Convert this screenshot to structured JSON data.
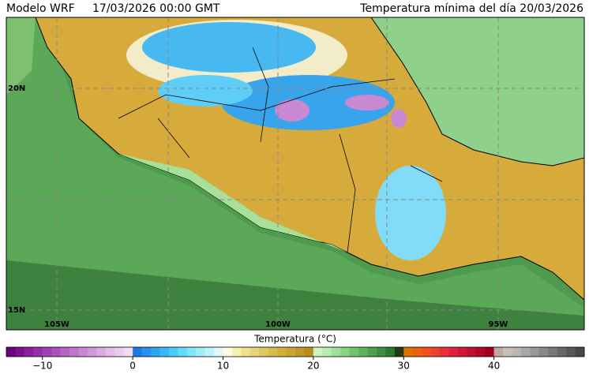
{
  "header": {
    "model": "Modelo WRF",
    "run": "17/03/2026 00:00 GMT",
    "title": "Temperatura mínima del día 20/03/2026"
  },
  "map": {
    "lat_labels": [
      "20N",
      "15N"
    ],
    "lon_labels": [
      "105W",
      "100W",
      "95W"
    ]
  },
  "colorbar": {
    "label": "Temperatura (°C)",
    "lim": [
      -14,
      50
    ],
    "ticks": [
      {
        "value": -10,
        "label": "−10"
      },
      0,
      10,
      20,
      30,
      40
    ],
    "colors": [
      "#6a0080",
      "#7a108e",
      "#8a209c",
      "#9630a8",
      "#a040b2",
      "#aa52ba",
      "#b464c2",
      "#be76ca",
      "#c888d2",
      "#d29ada",
      "#dcaae2",
      "#e4bce8",
      "#ecccee",
      "#f2dcf4",
      "#1e78e6",
      "#2890f0",
      "#30a4f4",
      "#38b8f8",
      "#48ccfa",
      "#60dcfc",
      "#80e6fc",
      "#a0eefc",
      "#c0f4fc",
      "#e0fafc",
      "#fffce0",
      "#f8eeb0",
      "#f0e090",
      "#e8d478",
      "#e0c860",
      "#d8bc48",
      "#d0b038",
      "#c8a430",
      "#c09828",
      "#b88c20",
      "#d0f4c0",
      "#b8ecb0",
      "#a0e098",
      "#88d480",
      "#70c470",
      "#60b460",
      "#50a050",
      "#408c40",
      "#307830",
      "#203c10",
      "#e07000",
      "#e86010",
      "#f05020",
      "#f04030",
      "#e83038",
      "#e02040",
      "#d01838",
      "#c01030",
      "#b00828",
      "#a00020",
      "#c0a8a0",
      "#c8c0b8",
      "#b8b8b0",
      "#a8a8a8",
      "#989898",
      "#888888",
      "#787878",
      "#686868",
      "#585858",
      "#484848"
    ]
  }
}
